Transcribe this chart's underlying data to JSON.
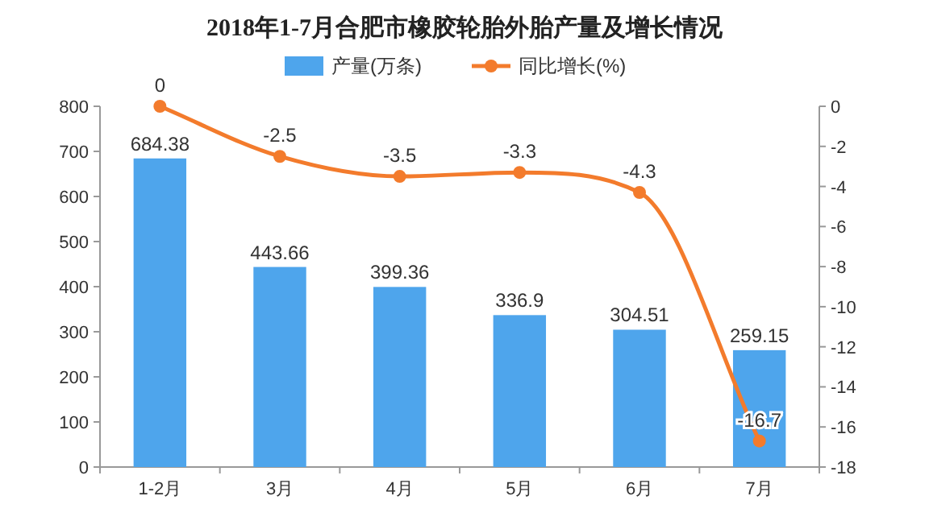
{
  "chart_data": {
    "type": "bar",
    "title": "2018年1-7月合肥市橡胶轮胎外胎产量及增长情况",
    "categories": [
      "1-2月",
      "3月",
      "4月",
      "5月",
      "6月",
      "7月"
    ],
    "series": [
      {
        "name": "产量(万条)",
        "color": "#4ea5ec",
        "values": [
          684.38,
          443.66,
          399.36,
          336.9,
          304.51,
          259.15
        ]
      },
      {
        "name": "同比增长(%)",
        "type": "line",
        "axis": "y2",
        "color": "#f37b2c",
        "marker": "circle",
        "values": [
          0,
          -2.5,
          -3.5,
          -3.3,
          -4.3,
          -16.7
        ]
      }
    ],
    "ylim": [
      0,
      800
    ],
    "yticks": [
      0,
      100,
      200,
      300,
      400,
      500,
      600,
      700,
      800
    ],
    "y2lim": [
      -18,
      0
    ],
    "y2ticks": [
      -18,
      -16,
      -14,
      -12,
      -10,
      -8,
      -6,
      -4,
      -2,
      0
    ],
    "data_labels": true,
    "legend": "top",
    "grid": false
  }
}
